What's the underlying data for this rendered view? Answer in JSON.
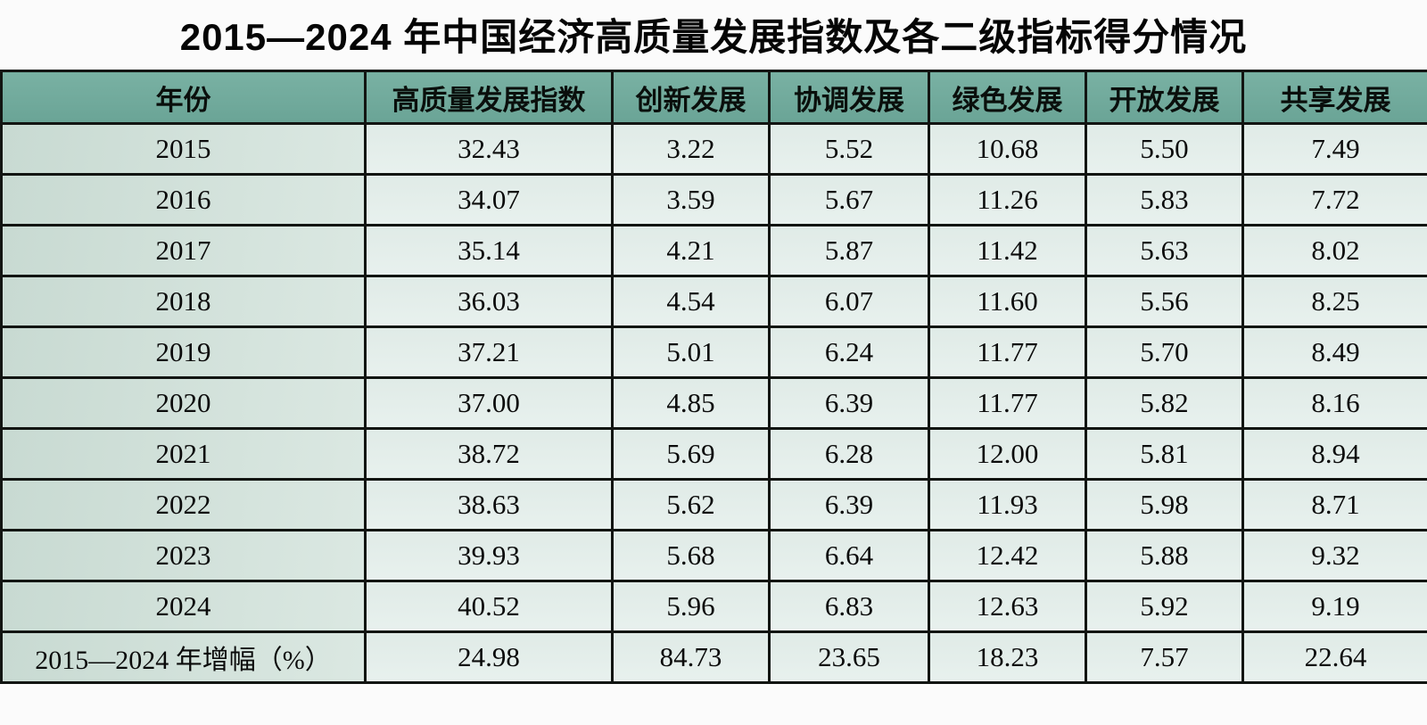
{
  "title": "2015—2024 年中国经济高质量发展指数及各二级指标得分情况",
  "table": {
    "headers": [
      "年份",
      "高质量发展指数",
      "创新发展",
      "协调发展",
      "绿色发展",
      "开放发展",
      "共享发展"
    ],
    "rows": [
      {
        "cells": [
          "2015",
          "32.43",
          "3.22",
          "5.52",
          "10.68",
          "5.50",
          "7.49"
        ]
      },
      {
        "cells": [
          "2016",
          "34.07",
          "3.59",
          "5.67",
          "11.26",
          "5.83",
          "7.72"
        ]
      },
      {
        "cells": [
          "2017",
          "35.14",
          "4.21",
          "5.87",
          "11.42",
          "5.63",
          "8.02"
        ]
      },
      {
        "cells": [
          "2018",
          "36.03",
          "4.54",
          "6.07",
          "11.60",
          "5.56",
          "8.25"
        ]
      },
      {
        "cells": [
          "2019",
          "37.21",
          "5.01",
          "6.24",
          "11.77",
          "5.70",
          "8.49"
        ]
      },
      {
        "cells": [
          "2020",
          "37.00",
          "4.85",
          "6.39",
          "11.77",
          "5.82",
          "8.16"
        ]
      },
      {
        "cells": [
          "2021",
          "38.72",
          "5.69",
          "6.28",
          "12.00",
          "5.81",
          "8.94"
        ]
      },
      {
        "cells": [
          "2022",
          "38.63",
          "5.62",
          "6.39",
          "11.93",
          "5.98",
          "8.71"
        ]
      },
      {
        "cells": [
          "2023",
          "39.93",
          "5.68",
          "6.64",
          "12.42",
          "5.88",
          "9.32"
        ]
      },
      {
        "cells": [
          "2024",
          "40.52",
          "5.96",
          "6.83",
          "12.63",
          "5.92",
          "9.19"
        ]
      },
      {
        "cells": [
          "2015—2024 年增幅（%）",
          "24.98",
          "84.73",
          "23.65",
          "18.23",
          "7.57",
          "22.64"
        ],
        "summary": true
      }
    ]
  },
  "colors": {
    "header_bg": "#6faa9b",
    "year_column_bg": "#cfe0d9",
    "value_cell_bg": "#e3ede9",
    "border": "#121512",
    "title_text": "#050505"
  },
  "chart_data": {
    "type": "table",
    "title": "2015—2024 年中国经济高质量发展指数及各二级指标得分情况",
    "columns": [
      "年份",
      "高质量发展指数",
      "创新发展",
      "协调发展",
      "绿色发展",
      "开放发展",
      "共享发展"
    ],
    "years": [
      2015,
      2016,
      2017,
      2018,
      2019,
      2020,
      2021,
      2022,
      2023,
      2024
    ],
    "series": [
      {
        "name": "高质量发展指数",
        "values": [
          32.43,
          34.07,
          35.14,
          36.03,
          37.21,
          37.0,
          38.72,
          38.63,
          39.93,
          40.52
        ],
        "growth_2015_2024_pct": 24.98
      },
      {
        "name": "创新发展",
        "values": [
          3.22,
          3.59,
          4.21,
          4.54,
          5.01,
          4.85,
          5.69,
          5.62,
          5.68,
          5.96
        ],
        "growth_2015_2024_pct": 84.73
      },
      {
        "name": "协调发展",
        "values": [
          5.52,
          5.67,
          5.87,
          6.07,
          6.24,
          6.39,
          6.28,
          6.39,
          6.64,
          6.83
        ],
        "growth_2015_2024_pct": 23.65
      },
      {
        "name": "绿色发展",
        "values": [
          10.68,
          11.26,
          11.42,
          11.6,
          11.77,
          11.77,
          12.0,
          11.93,
          12.42,
          12.63
        ],
        "growth_2015_2024_pct": 18.23
      },
      {
        "name": "开放发展",
        "values": [
          5.5,
          5.83,
          5.63,
          5.56,
          5.7,
          5.82,
          5.81,
          5.98,
          5.88,
          5.92
        ],
        "growth_2015_2024_pct": 7.57
      },
      {
        "name": "共享发展",
        "values": [
          7.49,
          7.72,
          8.02,
          8.25,
          8.49,
          8.16,
          8.94,
          8.71,
          9.32,
          9.19
        ],
        "growth_2015_2024_pct": 22.64
      }
    ],
    "summary_row_label": "2015—2024 年增幅（%）"
  }
}
